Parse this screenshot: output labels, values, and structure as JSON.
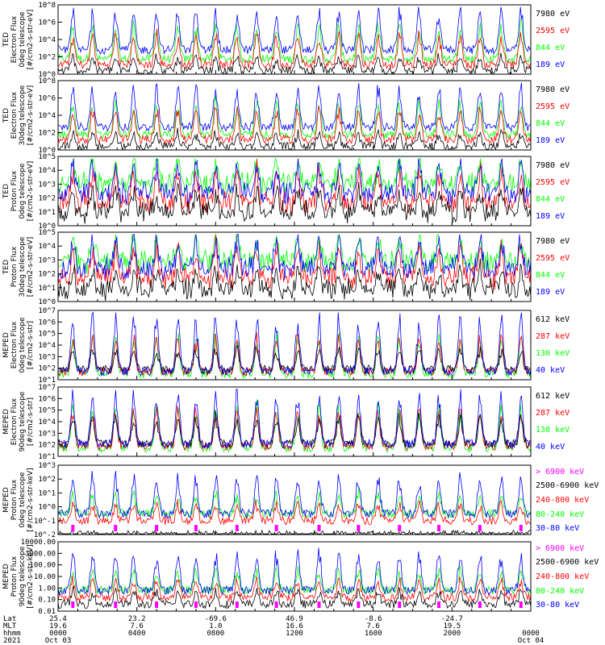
{
  "colors": {
    "blue": "#0000ff",
    "red": "#ff0000",
    "green": "#00ff00",
    "black": "#000000",
    "magenta": "#ff00ff"
  },
  "panels": [
    {
      "ylabel": [
        "TED",
        "Electron Flux",
        "0deg telescope",
        "[#/cm2-s-str-eV]"
      ],
      "scale": "log",
      "ytick_labels": [
        "10^0",
        "10^2",
        "10^4",
        "10^6",
        "10^8"
      ],
      "legend": [
        {
          "text": "7980 eV",
          "color": "black"
        },
        {
          "text": "2595 eV",
          "color": "red"
        },
        {
          "text": "844 eV",
          "color": "green"
        },
        {
          "text": "189 eV",
          "color": "blue"
        }
      ]
    },
    {
      "ylabel": [
        "TED",
        "Electron Flux",
        "30deg telescope",
        "[#/cm2-s-str-eV]"
      ],
      "scale": "log",
      "ytick_labels": [
        "10^0",
        "10^2",
        "10^4",
        "10^6",
        "10^8"
      ],
      "legend": [
        {
          "text": "7980 eV",
          "color": "black"
        },
        {
          "text": "2595 eV",
          "color": "red"
        },
        {
          "text": "844 eV",
          "color": "green"
        },
        {
          "text": "189 eV",
          "color": "blue"
        }
      ]
    },
    {
      "ylabel": [
        "TED",
        "Proton Flux",
        "0deg telescope",
        "[#/cm2-s-str-eV]"
      ],
      "scale": "log",
      "ytick_labels": [
        "10^0",
        "10^1",
        "10^2",
        "10^3",
        "10^4",
        "10^5"
      ],
      "legend": [
        {
          "text": "7980 eV",
          "color": "black"
        },
        {
          "text": "2595 eV",
          "color": "red"
        },
        {
          "text": "844 eV",
          "color": "green"
        },
        {
          "text": "189 eV",
          "color": "blue"
        }
      ]
    },
    {
      "ylabel": [
        "TED",
        "Proton Flux",
        "30deg telescope",
        "[#/cm2-s-str-eV]"
      ],
      "scale": "log",
      "ytick_labels": [
        "10^0",
        "10^1",
        "10^2",
        "10^3",
        "10^4",
        "10^5"
      ],
      "legend": [
        {
          "text": "7980 eV",
          "color": "black"
        },
        {
          "text": "2595 eV",
          "color": "red"
        },
        {
          "text": "844 eV",
          "color": "green"
        },
        {
          "text": "189 eV",
          "color": "blue"
        }
      ]
    },
    {
      "ylabel": [
        "MEPED",
        "Electron Flux",
        "0deg telescope",
        "[#/cm2-s-str]"
      ],
      "scale": "log",
      "ytick_labels": [
        "10^1",
        "10^2",
        "10^3",
        "10^4",
        "10^5",
        "10^6",
        "10^7"
      ],
      "legend": [
        {
          "text": "612 keV",
          "color": "black"
        },
        {
          "text": "287 keV",
          "color": "red"
        },
        {
          "text": "130 keV",
          "color": "green"
        },
        {
          "text": "40 keV",
          "color": "blue"
        }
      ]
    },
    {
      "ylabel": [
        "MEPED",
        "Electron Flux",
        "90deg telescope",
        "[#/cm2-s-str]"
      ],
      "scale": "log",
      "ytick_labels": [
        "10^1",
        "10^2",
        "10^3",
        "10^4",
        "10^5",
        "10^6",
        "10^7"
      ],
      "legend": [
        {
          "text": "612 keV",
          "color": "black"
        },
        {
          "text": "287 keV",
          "color": "red"
        },
        {
          "text": "130 keV",
          "color": "green"
        },
        {
          "text": "40 keV",
          "color": "blue"
        }
      ]
    },
    {
      "ylabel": [
        "MEPED",
        "Proton Flux",
        "0deg telescope",
        "[#/cm2-s-str-keV]"
      ],
      "scale": "log",
      "ytick_labels": [
        "10^-2",
        "10^-1",
        "10^0",
        "10^1",
        "10^2",
        "10^3"
      ],
      "legend": [
        {
          "text": "> 6900 keV",
          "color": "magenta"
        },
        {
          "text": "2500-6900 keV",
          "color": "black"
        },
        {
          "text": "240-800 keV",
          "color": "red"
        },
        {
          "text": "80-240 keV",
          "color": "green"
        },
        {
          "text": "30-80 keV",
          "color": "blue"
        }
      ]
    },
    {
      "ylabel": [
        "MEPED",
        "Proton Flux",
        "90deg telescope",
        "[#/cm2-s-str-keV]"
      ],
      "scale": "log",
      "ytick_labels": [
        "0.01",
        "0.10",
        "1.00",
        "10.00",
        "100.00",
        "1000.00",
        "10000.00"
      ],
      "legend": [
        {
          "text": "> 6900 keV",
          "color": "magenta"
        },
        {
          "text": "2500-6900 keV",
          "color": "black"
        },
        {
          "text": "240-800 keV",
          "color": "red"
        },
        {
          "text": "80-240 keV",
          "color": "green"
        },
        {
          "text": "30-80 keV",
          "color": "blue"
        }
      ]
    }
  ],
  "xaxis": {
    "row_labels": [
      "Lat",
      "MLT",
      "hhmm",
      "2021"
    ],
    "ticks": [
      {
        "lat": "25.4",
        "mlt": "19.6",
        "hhmm": "0000",
        "date": "Oct 03"
      },
      {
        "lat": "23.2",
        "mlt": "7.6",
        "hhmm": "0400",
        "date": ""
      },
      {
        "lat": "-69.6",
        "mlt": "1.0",
        "hhmm": "0800",
        "date": ""
      },
      {
        "lat": "46.9",
        "mlt": "16.6",
        "hhmm": "1200",
        "date": ""
      },
      {
        "lat": "-8.6",
        "mlt": "7.6",
        "hhmm": "1600",
        "date": ""
      },
      {
        "lat": "-24.7",
        "mlt": "19.5",
        "hhmm": "2000",
        "date": ""
      },
      {
        "lat": "",
        "mlt": "",
        "hhmm": "0000",
        "date": "Oct 04"
      }
    ]
  },
  "chart_data": {
    "type": "line",
    "title": "",
    "x_range": [
      "2021 Oct 03 0000",
      "2021 Oct 04 0000"
    ],
    "grid": false,
    "legend_position": "right",
    "note": "Eight stacked log-scale time series panels of particle flux; each shows ~15 recurring orbital peaks per day.",
    "peak_times_hhmm": [
      "0045",
      "0145",
      "0255",
      "0350",
      "0500",
      "0605",
      "0700",
      "0800",
      "0905",
      "1005",
      "1105",
      "1210",
      "1315",
      "1415",
      "1515",
      "1615",
      "1720",
      "1820",
      "1920",
      "2025",
      "2125",
      "2230",
      "2330"
    ]
  }
}
